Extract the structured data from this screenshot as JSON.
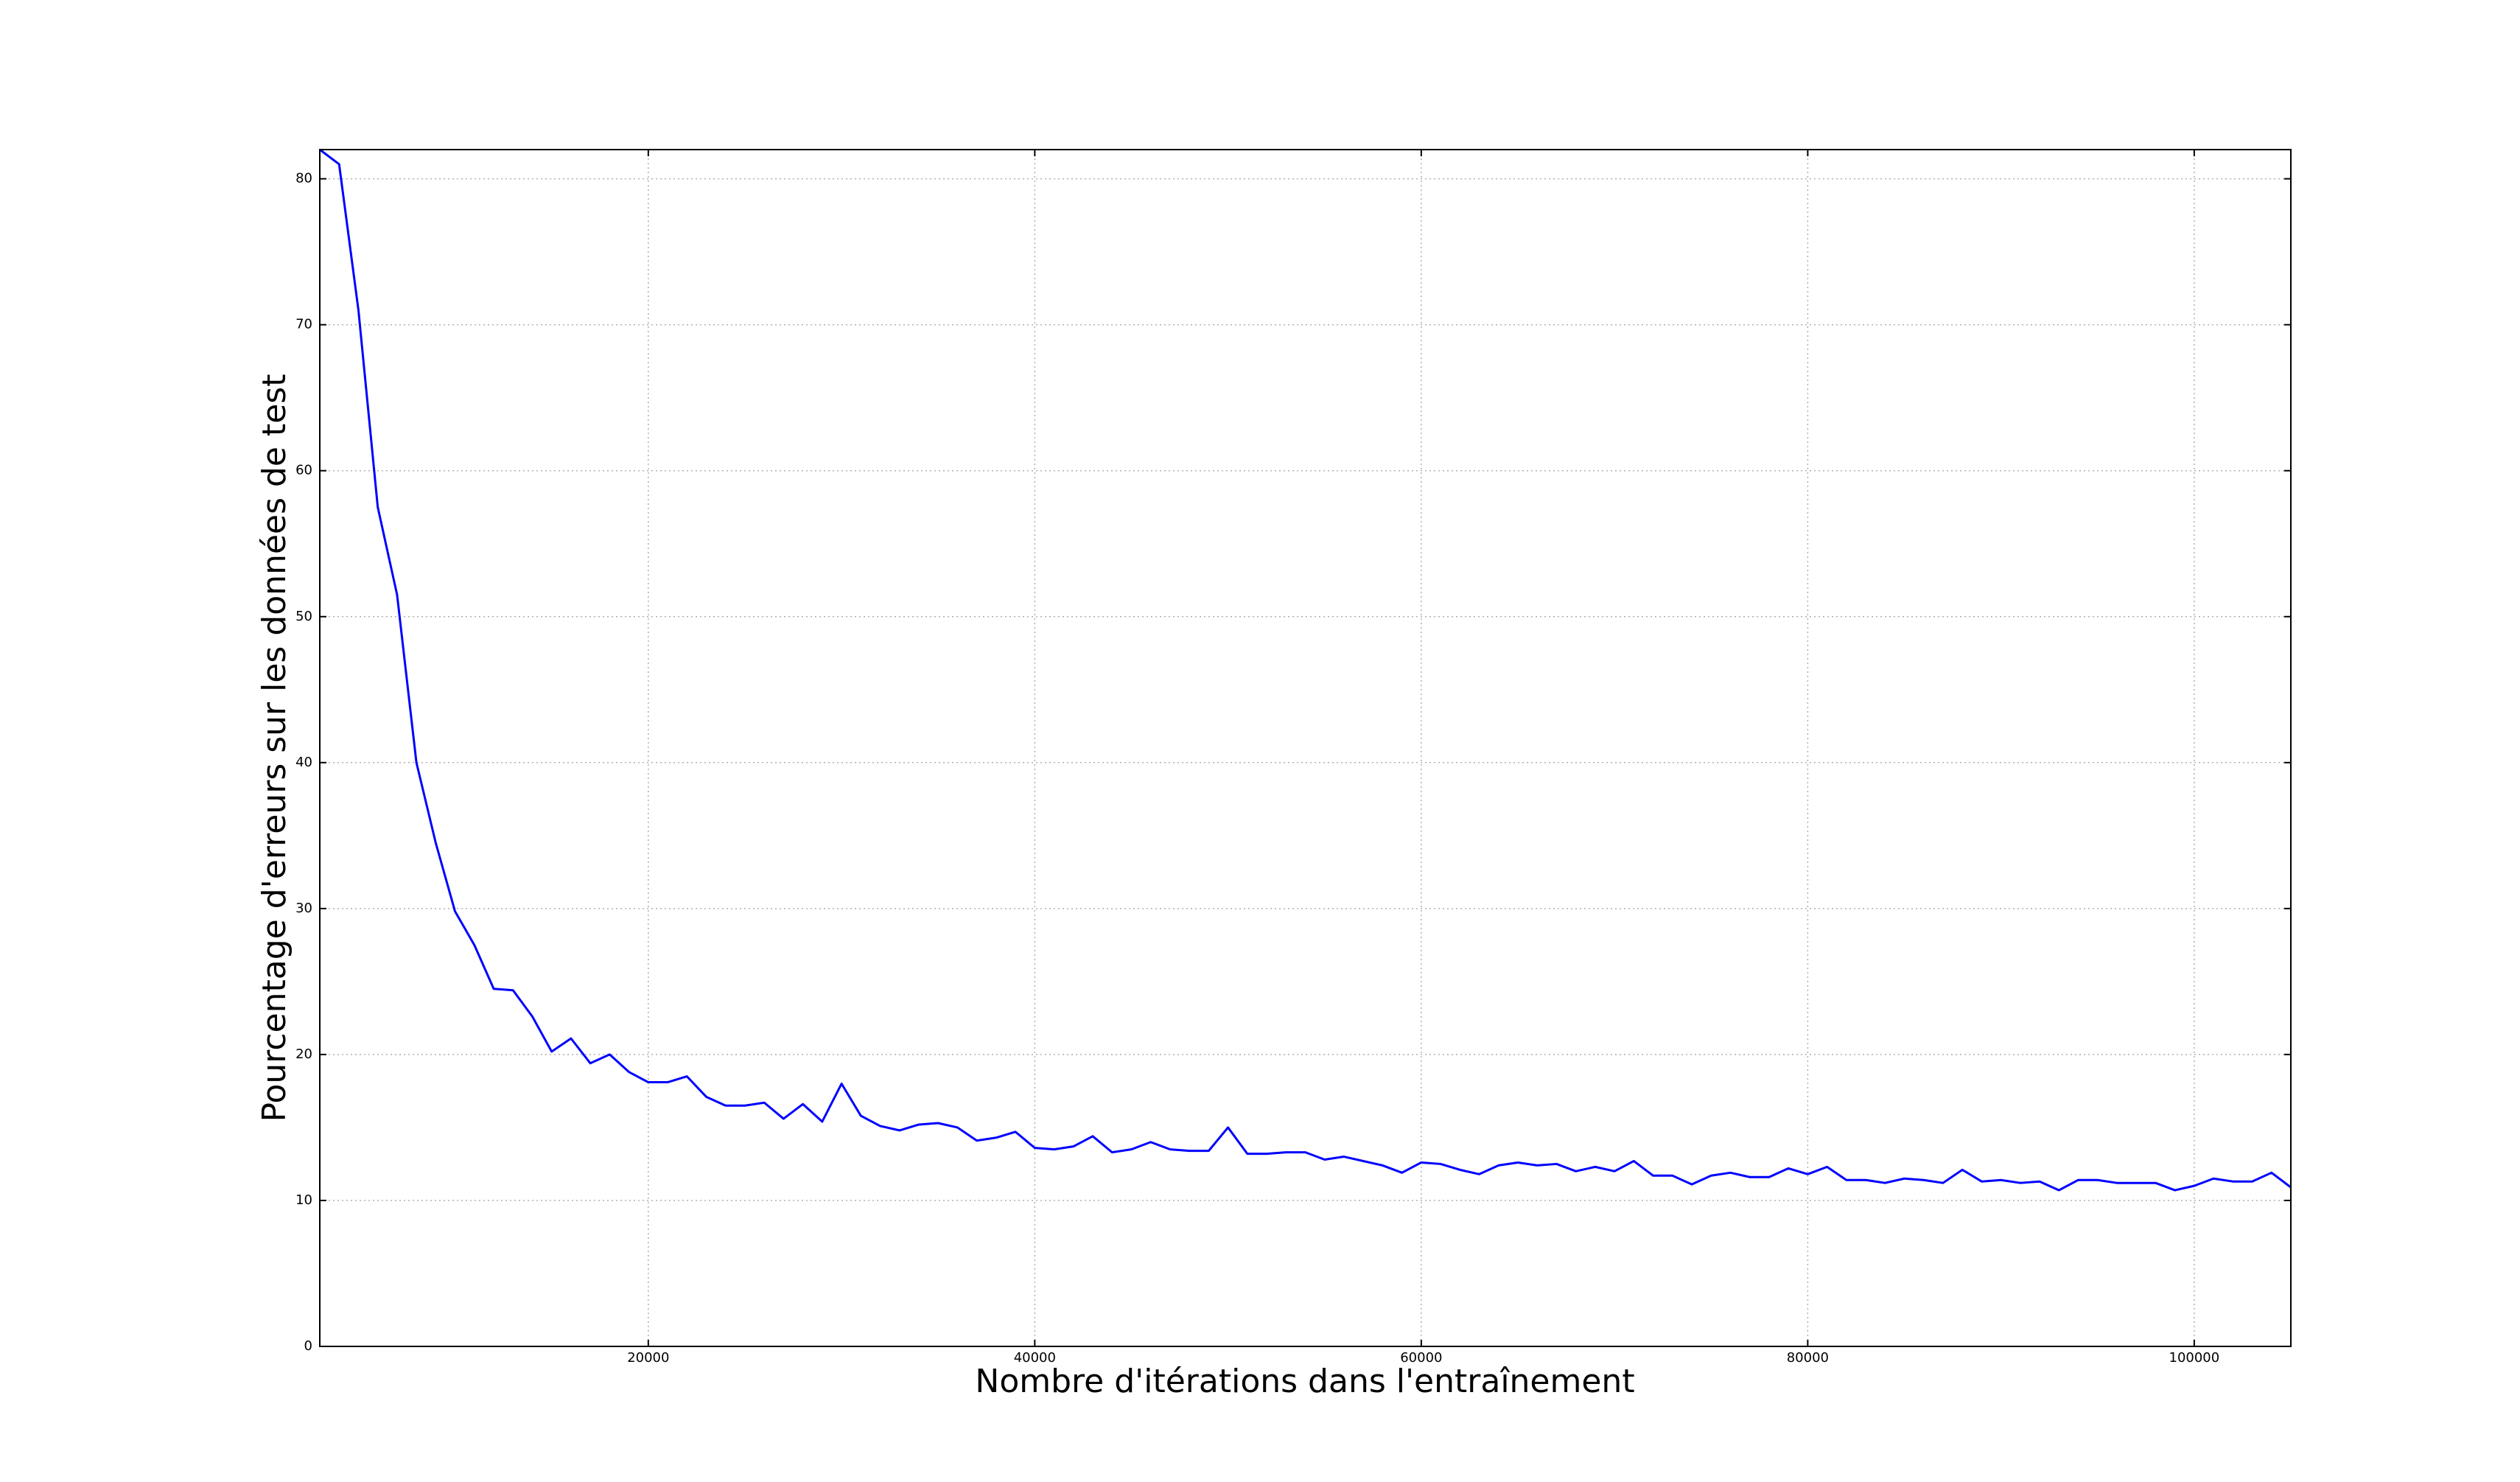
{
  "chart_data": {
    "type": "line",
    "xlabel": "Nombre d'itérations dans l'entraînement",
    "ylabel": "Pourcentage d'erreurs sur les données de test",
    "x": [
      3000,
      4000,
      5000,
      6000,
      7000,
      8000,
      9000,
      10000,
      11000,
      12000,
      13000,
      14000,
      15000,
      16000,
      17000,
      18000,
      19000,
      20000,
      21000,
      22000,
      23000,
      24000,
      25000,
      26000,
      27000,
      28000,
      29000,
      30000,
      31000,
      32000,
      33000,
      34000,
      35000,
      36000,
      37000,
      38000,
      39000,
      40000,
      41000,
      42000,
      43000,
      44000,
      45000,
      46000,
      47000,
      48000,
      49000,
      50000,
      51000,
      52000,
      53000,
      54000,
      55000,
      56000,
      57000,
      58000,
      59000,
      60000,
      61000,
      62000,
      63000,
      64000,
      65000,
      66000,
      67000,
      68000,
      69000,
      70000,
      71000,
      72000,
      73000,
      74000,
      75000,
      76000,
      77000,
      78000,
      79000,
      80000,
      81000,
      82000,
      83000,
      84000,
      85000,
      86000,
      87000,
      88000,
      89000,
      90000,
      91000,
      92000,
      93000,
      94000,
      95000,
      96000,
      97000,
      98000,
      99000,
      100000,
      101000,
      102000,
      103000,
      104000,
      105000
    ],
    "series": [
      {
        "color": "#0000ff",
        "values": [
          82,
          81,
          71,
          57.5,
          51.5,
          40,
          34.5,
          29.8,
          27.5,
          24.5,
          24.4,
          22.6,
          20.2,
          21.1,
          19.4,
          20,
          18.8,
          18.1,
          18.1,
          18.5,
          17.1,
          16.5,
          16.5,
          16.7,
          15.6,
          16.6,
          15.4,
          18,
          15.8,
          15.1,
          14.8,
          15.2,
          15.3,
          15,
          14.1,
          14.3,
          14.7,
          13.6,
          13.5,
          13.7,
          14.4,
          13.3,
          13.5,
          14,
          13.5,
          13.4,
          13.4,
          15,
          13.2,
          13.2,
          13.3,
          13.3,
          12.8,
          13,
          12.7,
          12.4,
          11.9,
          12.6,
          12.5,
          12.1,
          11.8,
          12.4,
          12.6,
          12.4,
          12.5,
          12,
          12.3,
          12,
          12.7,
          11.7,
          11.7,
          11.1,
          11.7,
          11.9,
          11.6,
          11.6,
          12.2,
          11.8,
          12.3,
          11.4,
          11.4,
          11.2,
          11.5,
          11.4,
          11.2,
          12.1,
          11.3,
          11.4,
          11.2,
          11.3,
          10.7,
          11.4,
          11.4,
          11.2,
          11.2,
          11.2,
          10.7,
          11,
          11.5,
          11.3,
          11.3,
          11.9,
          10.9
        ]
      }
    ],
    "xlim": [
      3000,
      105000
    ],
    "ylim": [
      0,
      82
    ],
    "xticks": [
      20000,
      40000,
      60000,
      80000,
      100000
    ],
    "yticks": [
      0,
      10,
      20,
      30,
      40,
      50,
      60,
      70,
      80
    ],
    "grid": true
  }
}
